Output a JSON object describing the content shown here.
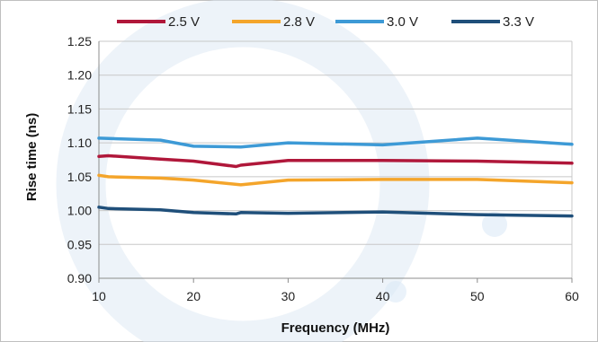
{
  "chart_data": {
    "type": "line",
    "title": "",
    "xlabel": "Frequency (MHz)",
    "ylabel": "Rise time (ns)",
    "xlim": [
      10,
      60
    ],
    "ylim": [
      0.9,
      1.25
    ],
    "x_ticks": [
      "10",
      "20",
      "30",
      "40",
      "50",
      "60"
    ],
    "y_ticks": [
      "0.90",
      "0.95",
      "1.00",
      "1.05",
      "1.10",
      "1.15",
      "1.20",
      "1.25"
    ],
    "grid": "horizontal",
    "legend_position": "top",
    "series": [
      {
        "name": "2.5 V",
        "color": "#b0173a",
        "x": [
          10,
          11,
          16.5,
          20,
          24.5,
          25,
          30,
          40,
          50,
          60
        ],
        "y": [
          1.08,
          1.081,
          1.076,
          1.073,
          1.065,
          1.067,
          1.074,
          1.074,
          1.073,
          1.07
        ]
      },
      {
        "name": "2.8 V",
        "color": "#f4a52b",
        "x": [
          10,
          11,
          16.5,
          20,
          25,
          30,
          40,
          50,
          60
        ],
        "y": [
          1.052,
          1.05,
          1.048,
          1.045,
          1.038,
          1.045,
          1.046,
          1.046,
          1.041
        ]
      },
      {
        "name": "3.0 V",
        "color": "#3d9ad6",
        "x": [
          10,
          16.5,
          20,
          25,
          30,
          40,
          50,
          60
        ],
        "y": [
          1.107,
          1.104,
          1.095,
          1.094,
          1.1,
          1.097,
          1.107,
          1.098
        ]
      },
      {
        "name": "3.3 V",
        "color": "#1f4f7a",
        "x": [
          10,
          11,
          16.5,
          20,
          24.5,
          25,
          30,
          40,
          50,
          60
        ],
        "y": [
          1.005,
          1.003,
          1.001,
          0.997,
          0.995,
          0.997,
          0.996,
          0.998,
          0.994,
          0.992
        ]
      }
    ]
  }
}
